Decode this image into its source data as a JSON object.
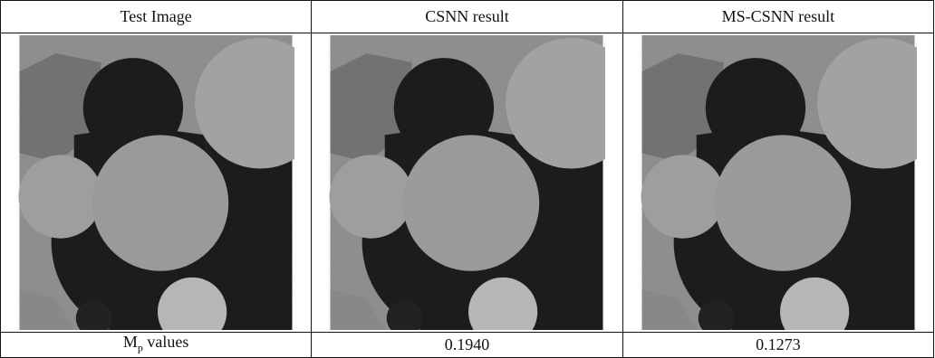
{
  "table": {
    "header": [
      "Test Image",
      "CSNN result",
      "MS-CSNN result"
    ],
    "footer": {
      "label": {
        "main": "M",
        "sub": "p",
        "rest": "values"
      },
      "values": [
        "0.1940",
        "0.1273"
      ]
    }
  }
}
